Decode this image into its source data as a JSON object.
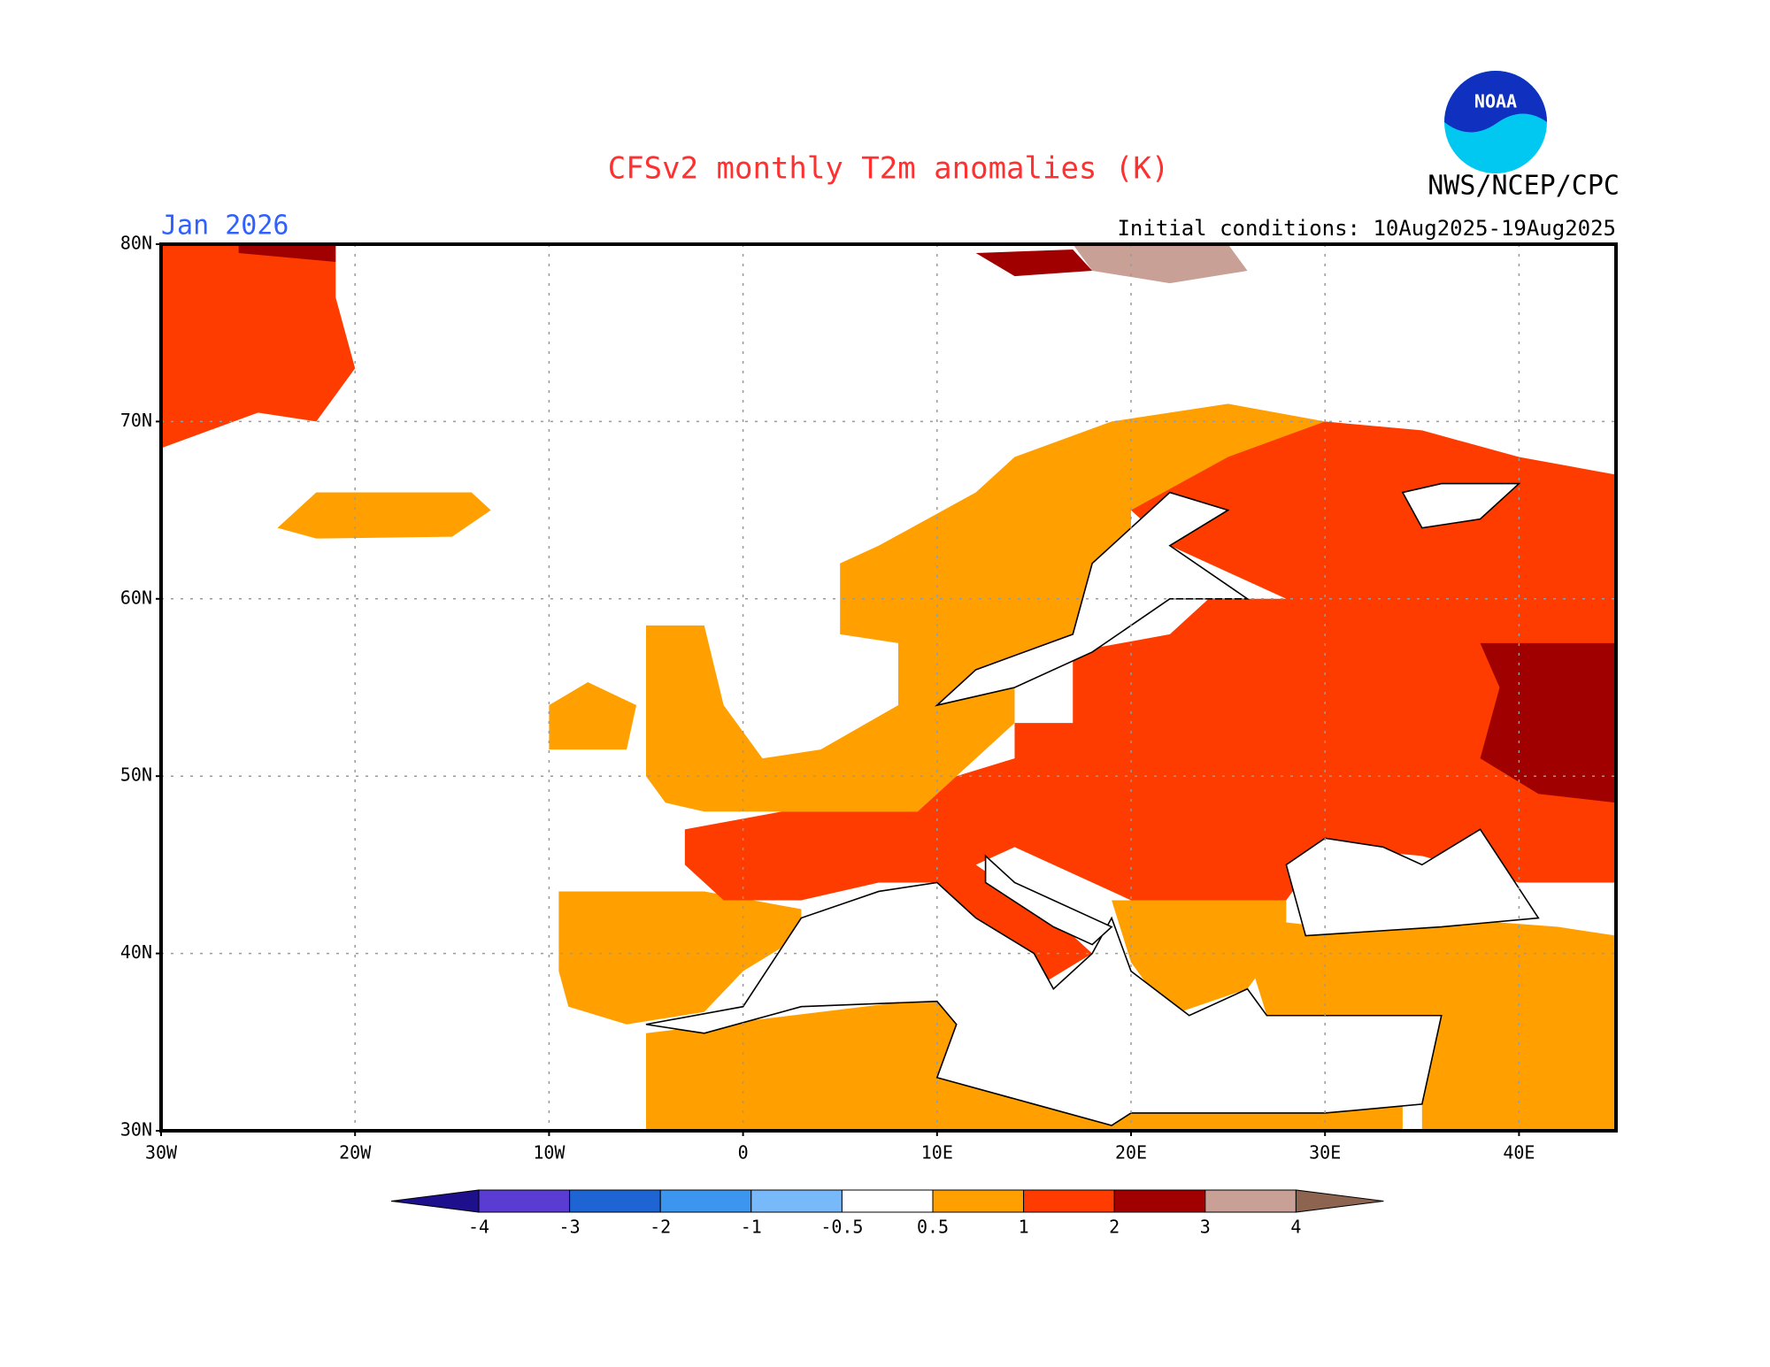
{
  "header": {
    "title": "CFSv2 monthly T2m anomalies (K)",
    "month": "Jan 2026",
    "initial_conditions": "Initial conditions: 10Aug2025-19Aug2025",
    "agency": "NWS/NCEP/CPC",
    "logo_text": "NOAA"
  },
  "map": {
    "xlim": [
      -30,
      45
    ],
    "ylim": [
      30,
      80
    ],
    "grid": true,
    "xticks": [
      {
        "value": -30,
        "label": "30W"
      },
      {
        "value": -20,
        "label": "20W"
      },
      {
        "value": -10,
        "label": "10W"
      },
      0,
      {
        "value": 10,
        "label": "10E"
      },
      {
        "value": 20,
        "label": "20E"
      },
      {
        "value": 30,
        "label": "30E"
      },
      {
        "value": 40,
        "label": "40E"
      }
    ],
    "yticks": [
      {
        "value": 30,
        "label": "30N"
      },
      {
        "value": 40,
        "label": "40N"
      },
      {
        "value": 50,
        "label": "50N"
      },
      {
        "value": 60,
        "label": "60N"
      },
      {
        "value": 70,
        "label": "70N"
      },
      {
        "value": 80,
        "label": "80N"
      }
    ]
  },
  "colorbar": {
    "levels": [
      -4,
      -3,
      -2,
      -1,
      -0.5,
      0.5,
      1,
      2,
      3,
      4
    ],
    "colors": [
      "#1e0f8c",
      "#5a3cd2",
      "#1e64d2",
      "#3c96f0",
      "#78b9fa",
      "#ffffff",
      "#ffa000",
      "#ff3c00",
      "#a00000",
      "#c8a096",
      "#8c6450"
    ]
  }
}
